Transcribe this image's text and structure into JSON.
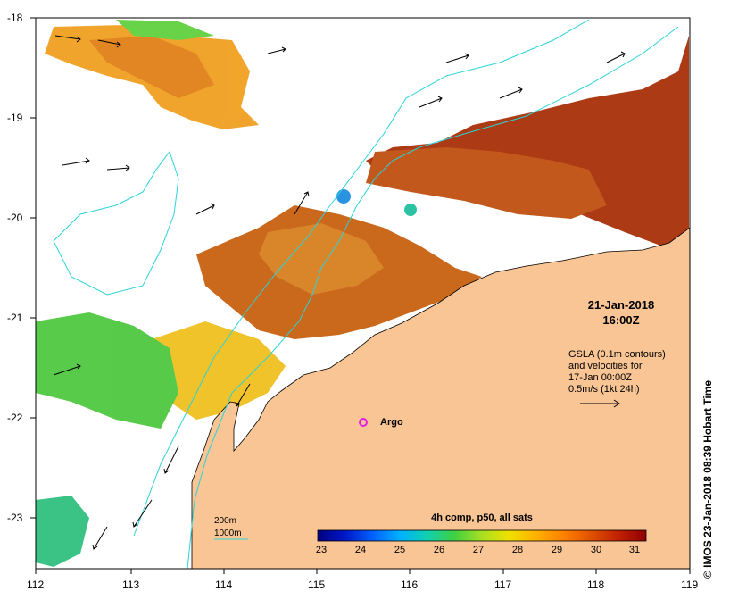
{
  "map": {
    "title_time": "21-Jan-2018",
    "title_hour": "16:00Z",
    "gsla_lines": [
      "GSLA (0.1m contours)",
      "and velocities for",
      "17-Jan 00:00Z",
      "0.5m/s (1kt 24h)"
    ],
    "credit": "©  IMOS 23-Jan-2018 08:39 Hobart Time",
    "argo_label": "Argo",
    "argo_color": "#e020e0",
    "land_color": "#f9c595",
    "isobath_color": "#2ad3d8",
    "x_ticks": [
      "112",
      "113",
      "114",
      "115",
      "116",
      "117",
      "118",
      "119"
    ],
    "y_ticks": [
      "-18",
      "-19",
      "-20",
      "-21",
      "-22",
      "-23"
    ],
    "isobath_legend": [
      "200m",
      "1000m"
    ]
  },
  "colorbar": {
    "title": "4h comp, p50, all sats",
    "ticks": [
      "23",
      "24",
      "25",
      "26",
      "27",
      "28",
      "29",
      "30",
      "31"
    ],
    "colors": [
      "#000080",
      "#0018c8",
      "#0060ff",
      "#00b0ff",
      "#10d0b0",
      "#40d040",
      "#a8e020",
      "#f0e000",
      "#ffb000",
      "#ff8000",
      "#e05000",
      "#c02000",
      "#900000"
    ]
  }
}
